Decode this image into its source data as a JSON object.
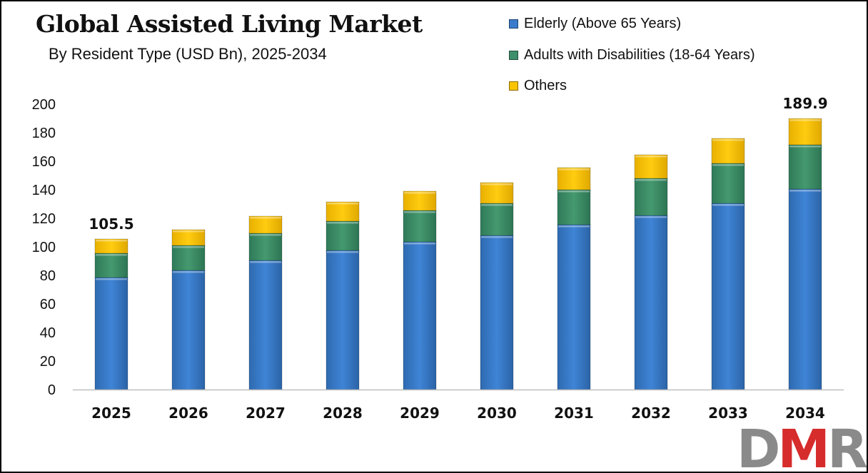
{
  "chart_data": {
    "type": "bar",
    "stacked": true,
    "title": "Global Assisted Living Market",
    "subtitle": "By Resident Type (USD Bn), 2025-2034",
    "categories": [
      "2025",
      "2026",
      "2027",
      "2028",
      "2029",
      "2030",
      "2031",
      "2032",
      "2033",
      "2034"
    ],
    "series": [
      {
        "name": "Elderly (Above 65 Years)",
        "color": "#3a7ccb",
        "values": [
          78.5,
          83.5,
          90.5,
          97.5,
          103.5,
          108.0,
          115.5,
          122.0,
          130.5,
          140.5
        ]
      },
      {
        "name": "Adults with Disabilities (18-64 Years)",
        "color": "#3e8f6c",
        "values": [
          17.0,
          17.5,
          19.0,
          20.5,
          22.0,
          22.5,
          24.5,
          26.0,
          28.0,
          31.0
        ]
      },
      {
        "name": "Others",
        "color": "#fac400",
        "values": [
          10.0,
          11.0,
          12.0,
          13.5,
          13.5,
          14.5,
          15.5,
          16.5,
          17.5,
          18.4
        ]
      }
    ],
    "totals_labels": [
      {
        "category": "2025",
        "label": "105.5"
      },
      {
        "category": "2034",
        "label": "189.9"
      }
    ],
    "ylim": [
      0,
      200
    ],
    "yticks": [
      0,
      20,
      40,
      60,
      80,
      100,
      120,
      140,
      160,
      180,
      200
    ],
    "xlabel": "",
    "ylabel": "",
    "legend_position": "top-right",
    "grid": false
  },
  "logo": {
    "part1": "D",
    "part2": "M",
    "part3": "R"
  }
}
